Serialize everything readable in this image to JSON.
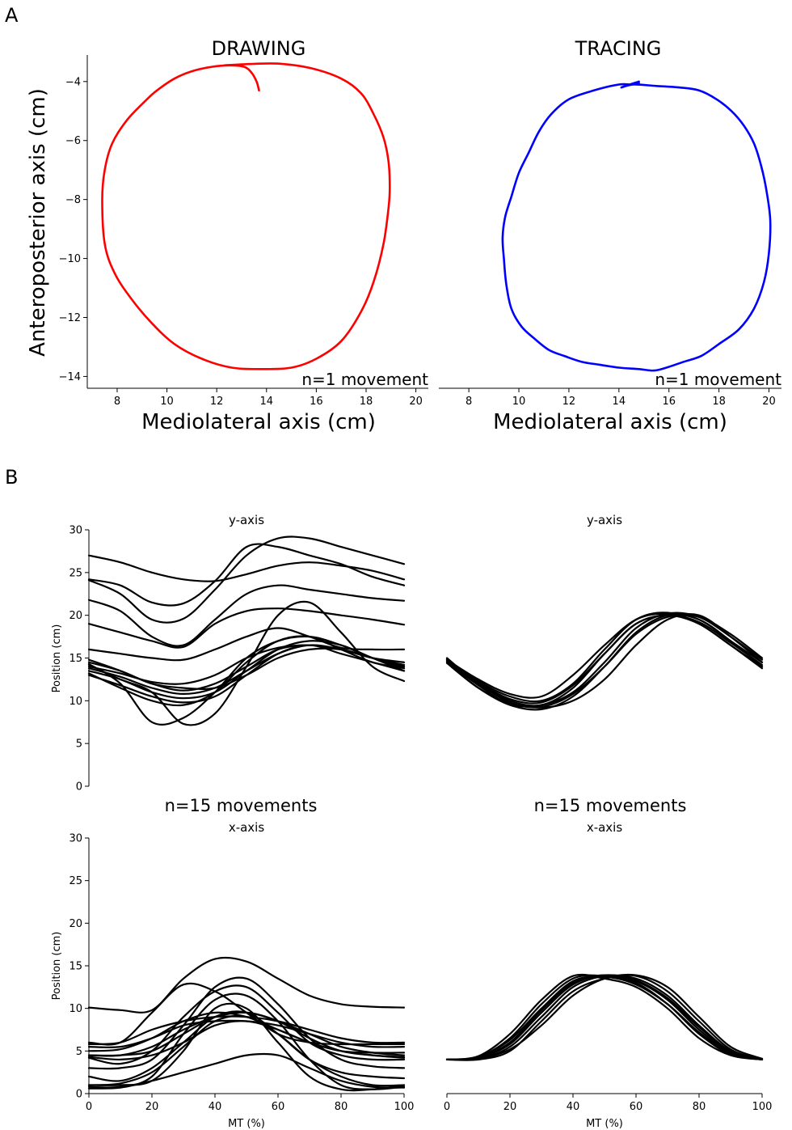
{
  "chart_data": [
    {
      "panel": "A",
      "type": "line",
      "title": "DRAWING",
      "xlabel": "Mediolateral axis (cm)",
      "ylabel": "Anteroposterior axis (cm)",
      "annotation": "n=1 movement",
      "xlim": [
        6.8,
        20.5
      ],
      "ylim": [
        -14.4,
        -3.1
      ],
      "xticks": [
        8,
        10,
        12,
        14,
        16,
        18,
        20
      ],
      "yticks": [
        -4,
        -6,
        -8,
        -10,
        -12,
        -14
      ],
      "color": "#ff0000",
      "series": [
        {
          "x": [
            12.3,
            13.5,
            14.6,
            15.8,
            17.0,
            17.8,
            18.3,
            18.7,
            18.9,
            18.95,
            18.9,
            18.7,
            18.3,
            17.8,
            17.0,
            16.0,
            15.0,
            13.8,
            12.6,
            11.4,
            10.3,
            9.4,
            8.6,
            7.9,
            7.5,
            7.4,
            7.5,
            7.8,
            8.4,
            9.2,
            9.6,
            10.3,
            11.0,
            11.8,
            12.5,
            13.1,
            13.4,
            13.6,
            13.7
          ],
          "y": [
            -3.45,
            -3.4,
            -3.4,
            -3.55,
            -3.9,
            -4.4,
            -5.1,
            -5.9,
            -6.7,
            -7.6,
            -8.3,
            -9.5,
            -10.8,
            -11.8,
            -12.8,
            -13.4,
            -13.7,
            -13.75,
            -13.7,
            -13.4,
            -12.9,
            -12.2,
            -11.4,
            -10.5,
            -9.5,
            -8.0,
            -7.0,
            -6.1,
            -5.3,
            -4.6,
            -4.3,
            -3.9,
            -3.65,
            -3.5,
            -3.45,
            -3.5,
            -3.7,
            -4.0,
            -4.3
          ]
        }
      ]
    },
    {
      "panel": "A",
      "type": "line",
      "title": "TRACING",
      "xlabel": "Mediolateral axis (cm)",
      "ylabel": "",
      "annotation": "n=1 movement",
      "xlim": [
        6.8,
        20.5
      ],
      "ylim": [
        -14.4,
        -3.1
      ],
      "xticks": [
        8,
        10,
        12,
        14,
        16,
        18,
        20
      ],
      "yticks": [],
      "color": "#0000ff",
      "series": [
        {
          "x": [
            14.8,
            14.5,
            14.0,
            13.0,
            12.0,
            11.3,
            10.8,
            10.4,
            10.0,
            9.7,
            9.45,
            9.35,
            9.4,
            9.5,
            9.7,
            10.1,
            10.6,
            11.2,
            11.8,
            12.5,
            13.2,
            14.0,
            14.8,
            15.4,
            15.9,
            16.6,
            17.3,
            18.0,
            18.8,
            19.4,
            19.8,
            20.0,
            20.05,
            19.9,
            19.7,
            19.4,
            19.0,
            18.5,
            17.9,
            17.2,
            16.4,
            15.5,
            14.6,
            14.1,
            14.8
          ],
          "y": [
            -4.05,
            -4.1,
            -4.1,
            -4.3,
            -4.6,
            -5.1,
            -5.7,
            -6.4,
            -7.1,
            -7.9,
            -8.6,
            -9.3,
            -10.0,
            -10.9,
            -11.7,
            -12.3,
            -12.7,
            -13.1,
            -13.3,
            -13.5,
            -13.6,
            -13.7,
            -13.75,
            -13.8,
            -13.7,
            -13.5,
            -13.3,
            -12.9,
            -12.4,
            -11.7,
            -10.8,
            -9.8,
            -8.7,
            -7.7,
            -6.9,
            -6.1,
            -5.5,
            -5.0,
            -4.6,
            -4.3,
            -4.2,
            -4.15,
            -4.1,
            -4.2,
            -4.0
          ]
        }
      ]
    },
    {
      "panel": "B",
      "type": "line",
      "title": "y-axis",
      "ylabel": "Position (cm)",
      "xlabel": "",
      "xlim": [
        0,
        100
      ],
      "ylim": [
        0,
        30
      ],
      "xticks": [],
      "yticks": [
        0,
        5,
        10,
        15,
        20,
        25,
        30
      ],
      "x": [
        0,
        10,
        20,
        30,
        40,
        50,
        60,
        70,
        80,
        90,
        100
      ],
      "series": [
        {
          "values": [
            27.0,
            26.2,
            25.0,
            24.2,
            24.0,
            24.8,
            25.8,
            26.2,
            25.8,
            25.2,
            24.2
          ]
        },
        {
          "values": [
            24.2,
            23.5,
            21.5,
            21.4,
            24.0,
            28.0,
            28.0,
            27.0,
            26.0,
            24.5,
            23.5
          ]
        },
        {
          "values": [
            24.1,
            22.5,
            19.5,
            19.6,
            23.0,
            27.0,
            29.0,
            29.0,
            28.0,
            27.0,
            26.0
          ]
        },
        {
          "values": [
            21.8,
            20.5,
            17.5,
            16.5,
            19.5,
            22.5,
            23.5,
            23.0,
            22.5,
            22.0,
            21.7
          ]
        },
        {
          "values": [
            19.0,
            18.0,
            17.0,
            16.3,
            19.0,
            20.5,
            20.8,
            20.5,
            20.0,
            19.5,
            18.9
          ]
        },
        {
          "values": [
            16.0,
            15.5,
            15.0,
            14.8,
            16.0,
            17.5,
            18.5,
            17.5,
            16.2,
            16.0,
            16.0
          ]
        },
        {
          "values": [
            14.5,
            13.5,
            12.0,
            11.5,
            11.5,
            13.0,
            15.0,
            16.0,
            16.0,
            15.0,
            14.0
          ]
        },
        {
          "values": [
            14.3,
            12.0,
            7.5,
            8.0,
            11.0,
            15.0,
            17.0,
            17.5,
            16.5,
            15.0,
            14.0
          ]
        },
        {
          "values": [
            14.2,
            12.5,
            11.0,
            7.3,
            8.5,
            14.0,
            20.0,
            21.5,
            18.0,
            14.0,
            12.3
          ]
        },
        {
          "values": [
            14.0,
            13.2,
            12.2,
            12.0,
            13.0,
            15.0,
            16.2,
            16.5,
            16.0,
            15.0,
            14.5
          ]
        },
        {
          "values": [
            13.8,
            12.8,
            11.5,
            10.8,
            11.5,
            13.5,
            15.5,
            16.5,
            16.0,
            15.0,
            13.8
          ]
        },
        {
          "values": [
            13.5,
            12.5,
            11.0,
            10.3,
            11.0,
            13.5,
            16.0,
            17.0,
            16.5,
            15.0,
            13.5
          ]
        },
        {
          "values": [
            13.0,
            11.8,
            10.5,
            9.8,
            10.5,
            13.0,
            15.5,
            16.5,
            15.5,
            14.5,
            13.5
          ]
        },
        {
          "values": [
            13.2,
            11.5,
            10.0,
            9.5,
            11.0,
            14.5,
            17.0,
            17.5,
            16.0,
            14.5,
            13.8
          ]
        },
        {
          "values": [
            14.8,
            13.5,
            12.0,
            11.2,
            12.0,
            14.0,
            16.0,
            16.5,
            16.0,
            15.0,
            14.2
          ]
        }
      ]
    },
    {
      "panel": "B",
      "type": "line",
      "title": "y-axis",
      "ylabel": "",
      "xlabel": "",
      "xlim": [
        0,
        100
      ],
      "ylim": [
        0,
        30
      ],
      "xticks": [],
      "yticks": [],
      "x": [
        0,
        10,
        20,
        30,
        40,
        50,
        60,
        70,
        80,
        90,
        100
      ],
      "series": [
        {
          "values": [
            15.0,
            12.0,
            10.0,
            9.5,
            11.5,
            15.5,
            19.0,
            20.0,
            19.0,
            16.5,
            14.0
          ]
        },
        {
          "values": [
            14.8,
            12.5,
            10.8,
            10.5,
            13.0,
            16.5,
            19.5,
            20.2,
            19.5,
            17.0,
            14.5
          ]
        },
        {
          "values": [
            14.5,
            11.5,
            9.5,
            9.0,
            10.5,
            14.0,
            18.0,
            20.0,
            19.5,
            17.0,
            14.0
          ]
        },
        {
          "values": [
            14.7,
            12.0,
            9.8,
            9.2,
            10.0,
            12.5,
            16.5,
            19.5,
            20.0,
            17.5,
            14.5
          ]
        },
        {
          "values": [
            14.6,
            11.8,
            9.6,
            9.5,
            11.0,
            14.5,
            18.5,
            20.2,
            19.8,
            17.5,
            14.8
          ]
        },
        {
          "values": [
            14.9,
            12.2,
            10.2,
            9.8,
            11.8,
            15.5,
            19.0,
            20.0,
            19.2,
            16.8,
            14.2
          ]
        },
        {
          "values": [
            14.4,
            11.5,
            9.7,
            9.3,
            10.8,
            14.0,
            17.8,
            19.8,
            19.8,
            17.8,
            15.0
          ]
        },
        {
          "values": [
            14.8,
            12.3,
            10.5,
            10.0,
            12.0,
            16.0,
            19.5,
            20.3,
            19.0,
            16.5,
            13.8
          ]
        }
      ]
    },
    {
      "panel": "B",
      "type": "line",
      "title": "x-axis",
      "header": "n=15 movements",
      "ylabel": "Position (cm)",
      "xlabel": "MT (%)",
      "xlim": [
        0,
        100
      ],
      "ylim": [
        0,
        30
      ],
      "xticks": [
        0,
        20,
        40,
        60,
        80,
        100
      ],
      "yticks": [
        0,
        5,
        10,
        15,
        20,
        25,
        30
      ],
      "x": [
        0,
        10,
        20,
        30,
        40,
        50,
        60,
        70,
        80,
        90,
        100
      ],
      "series": [
        {
          "values": [
            10.1,
            9.8,
            9.8,
            13.5,
            15.8,
            15.5,
            13.5,
            11.5,
            10.5,
            10.2,
            10.1
          ]
        },
        {
          "values": [
            6.0,
            6.0,
            9.5,
            12.8,
            12.0,
            9.5,
            7.0,
            6.0,
            5.8,
            5.8,
            5.8
          ]
        },
        {
          "values": [
            5.8,
            6.0,
            7.5,
            8.5,
            9.0,
            9.0,
            8.5,
            7.5,
            6.5,
            6.0,
            6.0
          ]
        },
        {
          "values": [
            5.5,
            5.5,
            6.5,
            8.0,
            8.5,
            8.5,
            8.0,
            7.0,
            6.0,
            5.5,
            5.5
          ]
        },
        {
          "values": [
            5.0,
            5.2,
            6.5,
            8.5,
            9.5,
            9.0,
            7.5,
            6.0,
            5.0,
            4.8,
            4.8
          ]
        },
        {
          "values": [
            4.5,
            4.5,
            5.5,
            7.5,
            9.0,
            9.5,
            8.5,
            7.0,
            5.5,
            4.8,
            4.5
          ]
        },
        {
          "values": [
            4.5,
            4.5,
            5.0,
            7.0,
            9.0,
            9.5,
            8.5,
            6.5,
            5.0,
            4.5,
            4.3
          ]
        },
        {
          "values": [
            4.3,
            4.0,
            4.5,
            6.0,
            8.0,
            8.5,
            7.5,
            6.0,
            5.0,
            4.5,
            4.2
          ]
        },
        {
          "values": [
            4.2,
            3.5,
            5.0,
            9.0,
            12.0,
            12.5,
            9.5,
            6.0,
            4.5,
            4.0,
            4.0
          ]
        },
        {
          "values": [
            3.0,
            3.0,
            4.0,
            8.0,
            12.5,
            13.5,
            10.5,
            6.5,
            4.0,
            3.2,
            3.0
          ]
        },
        {
          "values": [
            2.0,
            1.5,
            3.0,
            6.0,
            9.0,
            9.5,
            7.0,
            4.0,
            2.5,
            2.0,
            1.8
          ]
        },
        {
          "values": [
            1.0,
            1.0,
            1.5,
            5.0,
            10.0,
            10.0,
            6.0,
            2.0,
            0.5,
            0.5,
            1.0
          ]
        },
        {
          "values": [
            0.8,
            0.8,
            2.0,
            7.0,
            11.0,
            11.5,
            8.5,
            4.0,
            1.0,
            0.5,
            0.8
          ]
        },
        {
          "values": [
            0.6,
            0.7,
            1.5,
            2.5,
            3.5,
            4.5,
            4.5,
            3.0,
            1.5,
            0.8,
            0.7
          ]
        },
        {
          "values": [
            1.0,
            1.2,
            2.5,
            5.5,
            8.5,
            9.0,
            7.0,
            4.0,
            2.0,
            1.0,
            1.0
          ]
        }
      ]
    },
    {
      "panel": "B",
      "type": "line",
      "title": "x-axis",
      "header": "n=15 movements",
      "ylabel": "",
      "xlabel": "MT (%)",
      "xlim": [
        0,
        100
      ],
      "ylim": [
        0,
        30
      ],
      "xticks": [
        0,
        20,
        40,
        60,
        80,
        100
      ],
      "yticks": [],
      "x": [
        0,
        10,
        20,
        30,
        40,
        50,
        60,
        70,
        80,
        90,
        100
      ],
      "series": [
        {
          "values": [
            4.0,
            4.3,
            6.5,
            10.5,
            13.5,
            13.8,
            13.0,
            10.5,
            7.0,
            4.6,
            4.0
          ]
        },
        {
          "values": [
            4.0,
            4.1,
            5.5,
            9.0,
            12.5,
            13.8,
            13.5,
            11.5,
            8.0,
            5.0,
            4.0
          ]
        },
        {
          "values": [
            4.0,
            4.2,
            6.0,
            9.8,
            13.0,
            13.9,
            13.2,
            11.0,
            7.5,
            4.8,
            4.0
          ]
        },
        {
          "values": [
            4.0,
            4.0,
            5.0,
            8.5,
            12.0,
            13.5,
            13.8,
            12.0,
            8.5,
            5.2,
            4.0
          ]
        },
        {
          "values": [
            4.0,
            4.4,
            7.0,
            11.0,
            13.8,
            13.5,
            12.5,
            10.0,
            6.5,
            4.5,
            4.0
          ]
        },
        {
          "values": [
            4.0,
            4.1,
            5.2,
            8.0,
            11.5,
            13.5,
            13.9,
            12.5,
            9.0,
            5.5,
            4.1
          ]
        },
        {
          "values": [
            4.0,
            4.2,
            5.8,
            9.5,
            12.8,
            13.9,
            13.3,
            11.2,
            7.8,
            4.9,
            4.0
          ]
        },
        {
          "values": [
            4.0,
            4.3,
            6.3,
            10.0,
            13.2,
            13.7,
            12.8,
            10.5,
            7.2,
            4.7,
            4.0
          ]
        }
      ]
    }
  ],
  "panel_labels": {
    "a": "A",
    "b": "B"
  }
}
